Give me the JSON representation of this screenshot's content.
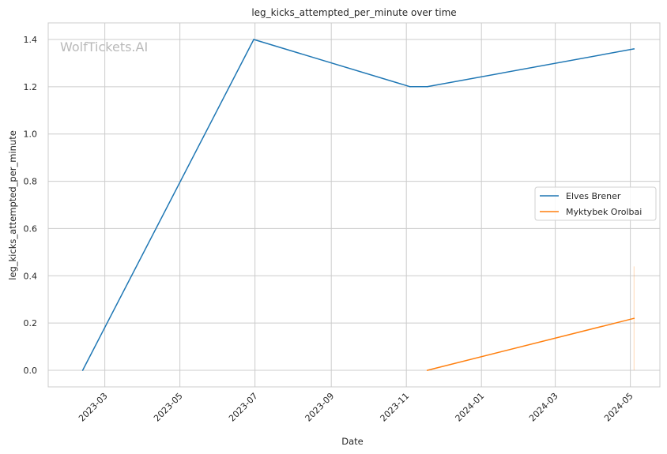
{
  "chart_data": {
    "type": "line",
    "title": "leg_kicks_attempted_per_minute over time",
    "xlabel": "Date",
    "ylabel": "leg_kicks_attempted_per_minute",
    "watermark": "WolfTickets.AI",
    "x_axis": {
      "min": "2023-01-14",
      "max": "2024-05-25",
      "ticks": [
        "2023-03-01",
        "2023-05-01",
        "2023-07-01",
        "2023-09-01",
        "2023-11-01",
        "2024-01-01",
        "2024-03-01",
        "2024-05-01"
      ],
      "tick_labels": [
        "2023-03",
        "2023-05",
        "2023-07",
        "2023-09",
        "2023-11",
        "2024-01",
        "2024-03",
        "2024-05"
      ]
    },
    "ylim": [
      -0.07,
      1.47
    ],
    "yticks": [
      0.0,
      0.2,
      0.4,
      0.6,
      0.8,
      1.0,
      1.2,
      1.4
    ],
    "ytick_labels": [
      "0.0",
      "0.2",
      "0.4",
      "0.6",
      "0.8",
      "1.0",
      "1.2",
      "1.4"
    ],
    "grid": true,
    "legend_position": "center-right",
    "series": [
      {
        "name": "Elves Brener",
        "color": "#1f77b4",
        "points": [
          {
            "x": "2023-02-11",
            "y": 0.0
          },
          {
            "x": "2023-06-30",
            "y": 1.4
          },
          {
            "x": "2023-11-04",
            "y": 1.2
          },
          {
            "x": "2023-11-18",
            "y": 1.2
          },
          {
            "x": "2024-05-04",
            "y": 1.36
          }
        ]
      },
      {
        "name": "Myktybek Orolbai",
        "color": "#ff7f0e",
        "points": [
          {
            "x": "2023-11-18",
            "y": 0.0
          },
          {
            "x": "2024-05-04",
            "y": 0.22
          }
        ],
        "interval": {
          "x": "2024-05-04",
          "low": 0.0,
          "high": 0.44
        }
      }
    ]
  }
}
